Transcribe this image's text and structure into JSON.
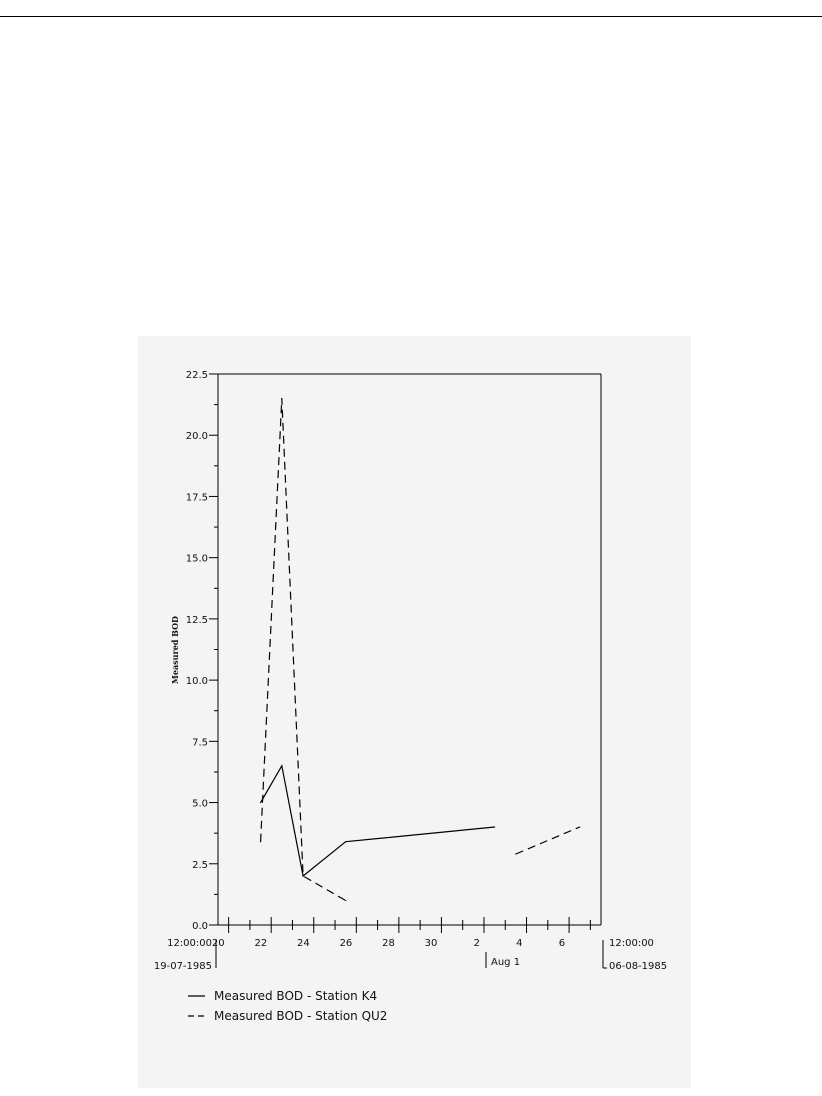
{
  "chart_data": {
    "type": "line",
    "title": "",
    "ylabel": "Measured BOD",
    "xlabel": "",
    "ylim": [
      0,
      22.5
    ],
    "xlim": [
      "1985-07-19T12:00",
      "1985-08-06T12:00"
    ],
    "grid": false,
    "yticks": [
      "0.0",
      "2.5",
      "5.0",
      "7.5",
      "10.0",
      "12.5",
      "15.0",
      "17.5",
      "20.0",
      "22.5"
    ],
    "x_day_ticks": [
      "20",
      "22",
      "24",
      "26",
      "28",
      "30",
      "2",
      "4",
      "6"
    ],
    "x_start_label": {
      "time": "12:00:00",
      "date": "19-07-1985"
    },
    "x_end_label": {
      "time": "12:00:00",
      "date": "06-08-1985"
    },
    "x_month_marker": "Aug 1",
    "legend_position": "bottom-left",
    "series": [
      {
        "name": "Measured BOD - Station K4",
        "style": "solid",
        "segments": [
          [
            {
              "x": "1985-07-21T12:00",
              "y": 5.0
            },
            {
              "x": "1985-07-22T12:00",
              "y": 6.5
            },
            {
              "x": "1985-07-23T12:00",
              "y": 2.0
            },
            {
              "x": "1985-07-25T12:00",
              "y": 3.4
            },
            {
              "x": "1985-08-01T12:00",
              "y": 4.0
            }
          ]
        ]
      },
      {
        "name": "Measured BOD - Station QU2",
        "style": "dashed",
        "segments": [
          [
            {
              "x": "1985-07-21T12:00",
              "y": 3.4
            },
            {
              "x": "1985-07-22T12:00",
              "y": 21.5
            },
            {
              "x": "1985-07-23T12:00",
              "y": 2.0
            },
            {
              "x": "1985-07-25T12:00",
              "y": 1.0
            }
          ],
          [
            {
              "x": "1985-08-02T12:00",
              "y": 2.9
            },
            {
              "x": "1985-08-05T12:00",
              "y": 4.0
            }
          ]
        ]
      }
    ]
  }
}
